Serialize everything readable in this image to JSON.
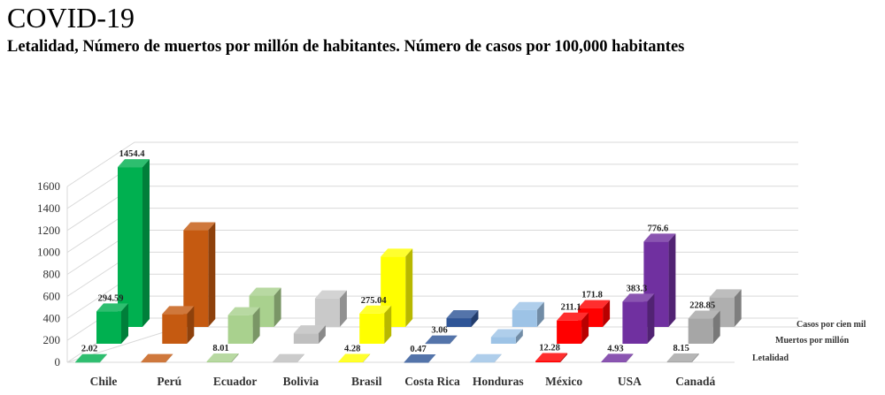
{
  "header": {
    "title": "COVID-19",
    "subtitle": "Letalidad, Número de muertos por millón de habitantes. Número de casos por 100,000 habitantes"
  },
  "chart_data": {
    "type": "bar",
    "style": "3d-columns",
    "title": "COVID-19",
    "subtitle": "Letalidad, Número de muertos por millón de habitantes. Número de casos por 100,000 habitantes",
    "xlabel": "",
    "ylabel": "",
    "ylim": [
      0,
      1600
    ],
    "yticks": [
      0,
      200,
      400,
      600,
      800,
      1000,
      1200,
      1400,
      1600
    ],
    "grid": true,
    "categories": [
      "Chile",
      "Perú",
      "Ecuador",
      "Bolivia",
      "Brasil",
      "Costa Rica",
      "Honduras",
      "México",
      "USA",
      "Canadá"
    ],
    "colors": {
      "front": [
        "#00B050",
        "#C55A11",
        "#A9D18E",
        "#BFBFBF",
        "#FFFF00",
        "#2F5597",
        "#9DC3E6",
        "#FF0000",
        "#7030A0",
        "#A6A6A6"
      ],
      "back": [
        "#00B050",
        "#C55A11",
        "#A9D18E",
        "#C9C9C9",
        "#FFFF00",
        "#2F5597",
        "#9DC3E6",
        "#FF0000",
        "#7030A0",
        "#AFAFAF"
      ]
    },
    "series": [
      {
        "name": "Letalidad",
        "values": [
          2.02,
          2.9,
          8.01,
          3.2,
          4.28,
          0.47,
          2.4,
          12.28,
          4.93,
          8.15
        ],
        "labels": [
          "2.02",
          "",
          "8.01",
          "",
          "4.28",
          "0.47",
          "",
          "12.28",
          "4.93",
          "8.15"
        ]
      },
      {
        "name": "Muertos por millón",
        "values": [
          294.59,
          270,
          260,
          95,
          275.04,
          3.06,
          60,
          211.1,
          383.3,
          228.85
        ],
        "labels": [
          "294.59",
          "",
          "",
          "",
          "275.04",
          "3.06",
          "",
          "211.1",
          "383.3",
          "228.85"
        ]
      },
      {
        "name": "Casos por cien mil",
        "values": [
          1454.4,
          880,
          285,
          260,
          640,
          80,
          155,
          171.8,
          776.6,
          270
        ],
        "labels": [
          "1454.4",
          "",
          "",
          "",
          "",
          "",
          "",
          "171.8",
          "776.6",
          ""
        ]
      }
    ]
  }
}
